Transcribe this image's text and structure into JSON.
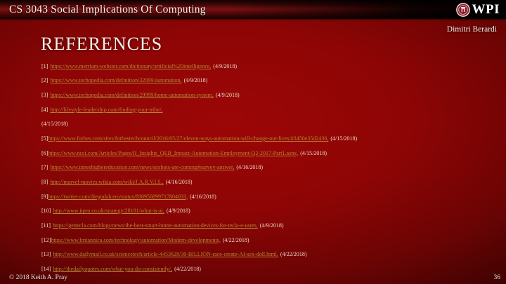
{
  "header": {
    "course_title": "CS 3043 Social Implications Of Computing",
    "logo_text": "WPI",
    "author": "Dimitri Berardi"
  },
  "slide": {
    "title": "REFERENCES"
  },
  "references": [
    {
      "num": "[1]",
      "url": "https://www.merriam-webster.com/dictionary/artificial%20intelligence,",
      "date": "(4/9/2018)",
      "tight": false
    },
    {
      "num": "[2]",
      "url": "https://www.techopedia.com/definition/32099/automation,",
      "date": "(4/9/2018)",
      "tight": false
    },
    {
      "num": "[3]",
      "url": "https://www.techopedia.com/definition/29999/home-automation-system,",
      "date": "(4/9/2018)",
      "tight": false
    },
    {
      "num": "[4]",
      "url": "http://lifestyle-leadership.com/finding-your-tribe/,",
      "date": "",
      "tight": false
    },
    {
      "num": "",
      "url": "",
      "date": "(4/15/2018)",
      "tight": false
    },
    {
      "num": "[5]",
      "url": "https://www.forbes.com/sites/forbestechcouncil/2016/05/27/eleven-ways-automation-will-change-our-lives/#3450e35d2436,",
      "date": "(4/15/2018)",
      "tight": true
    },
    {
      "num": "[6]",
      "url": "https://www.ncci.com/Articles/Pages/II_Insights_QEB_Impact-Automation-Employment-Q2-2017-Part1.aspx,",
      "date": "(4/15/2018)",
      "tight": true
    },
    {
      "num": "[7]",
      "url": "https://www.timeshighereducation.com/news/sexbots-are-coming#survey-answer,",
      "date": "(4/16/2018)",
      "tight": false
    },
    {
      "num": "[8]",
      "url": "http://marvel-movies.wikia.com/wiki/J.A.R.V.I.S.,",
      "date": "(4/16/2018)",
      "tight": false
    },
    {
      "num": "[9]",
      "url": "https://twitter.com/diegodalcero/status/830956899717804033,",
      "date": "(4/16/2018)",
      "tight": true
    },
    {
      "num": "[10]",
      "url": "http://www.itpro.co.uk/strategy/28181/what-is-ai,",
      "date": "(4/9/2018)",
      "tight": false
    },
    {
      "num": "[11]",
      "url": "https://gettecla.com/blogs/news/the-best-smart-home-automation-devices-for-tecla-e-users,",
      "date": "(4/9/2018)",
      "tight": false
    },
    {
      "num": "[12]",
      "url": "https://www.britannica.com/technology/automation/Modern-developments,",
      "date": "(4/22/2018)",
      "tight": true
    },
    {
      "num": "[13]",
      "url": "http://www.dailymail.co.uk/sciencetech/article-4453628/30-BILLION-race-create-AI-sex-doll.html,",
      "date": "(4/22/2018)",
      "tight": false
    },
    {
      "num": "[14]",
      "url": "http://thedailyquotes.com/what-you-do-consistently/,",
      "date": "(4/22/2018)",
      "tight": false
    }
  ],
  "footer": {
    "copyright": "© 2018 Keith A. Pray",
    "page_number": "36"
  },
  "colors": {
    "link": "#b28433",
    "text_cream": "#eadbc8",
    "background_center": "#9c0606",
    "background_edge": "#2a0101"
  }
}
